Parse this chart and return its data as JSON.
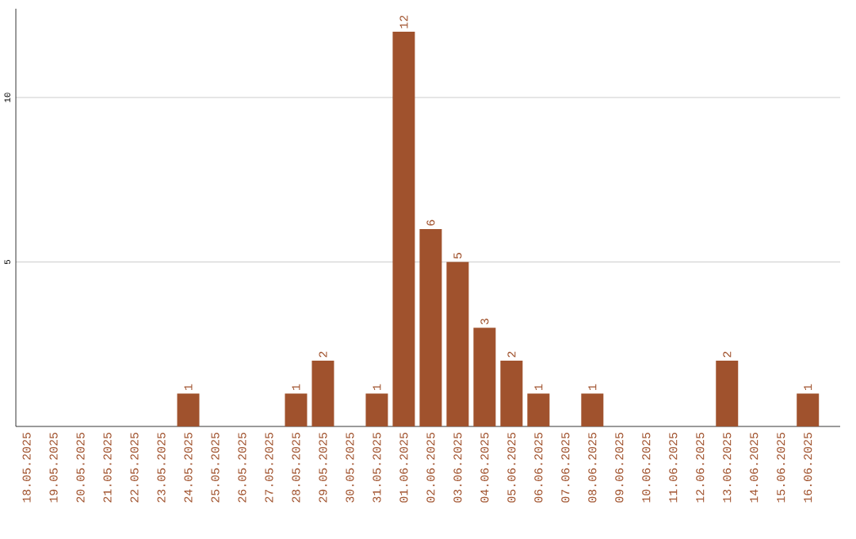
{
  "chart_data": {
    "type": "bar",
    "categories": [
      "18.05.2025",
      "19.05.2025",
      "20.05.2025",
      "21.05.2025",
      "22.05.2025",
      "23.05.2025",
      "24.05.2025",
      "25.05.2025",
      "26.05.2025",
      "27.05.2025",
      "28.05.2025",
      "29.05.2025",
      "30.05.2025",
      "31.05.2025",
      "01.06.2025",
      "02.06.2025",
      "03.06.2025",
      "04.06.2025",
      "05.06.2025",
      "06.06.2025",
      "07.06.2025",
      "08.06.2025",
      "09.06.2025",
      "10.06.2025",
      "11.06.2025",
      "12.06.2025",
      "13.06.2025",
      "14.06.2025",
      "15.06.2025",
      "16.06.2025"
    ],
    "values": [
      0,
      0,
      0,
      0,
      0,
      0,
      1,
      0,
      0,
      0,
      1,
      2,
      0,
      1,
      12,
      6,
      5,
      3,
      2,
      1,
      0,
      1,
      0,
      0,
      0,
      0,
      2,
      0,
      0,
      1
    ],
    "value_labels": [
      null,
      null,
      null,
      null,
      null,
      null,
      "1",
      null,
      null,
      null,
      "1",
      "2",
      null,
      "1",
      "12",
      "6",
      "5",
      "3",
      "2",
      "1",
      null,
      "1",
      null,
      null,
      null,
      null,
      "2",
      null,
      null,
      "1"
    ],
    "color": "#a0522d",
    "ylim": [
      0,
      12.7
    ],
    "yticks": [
      5,
      10
    ],
    "grid": "y"
  }
}
